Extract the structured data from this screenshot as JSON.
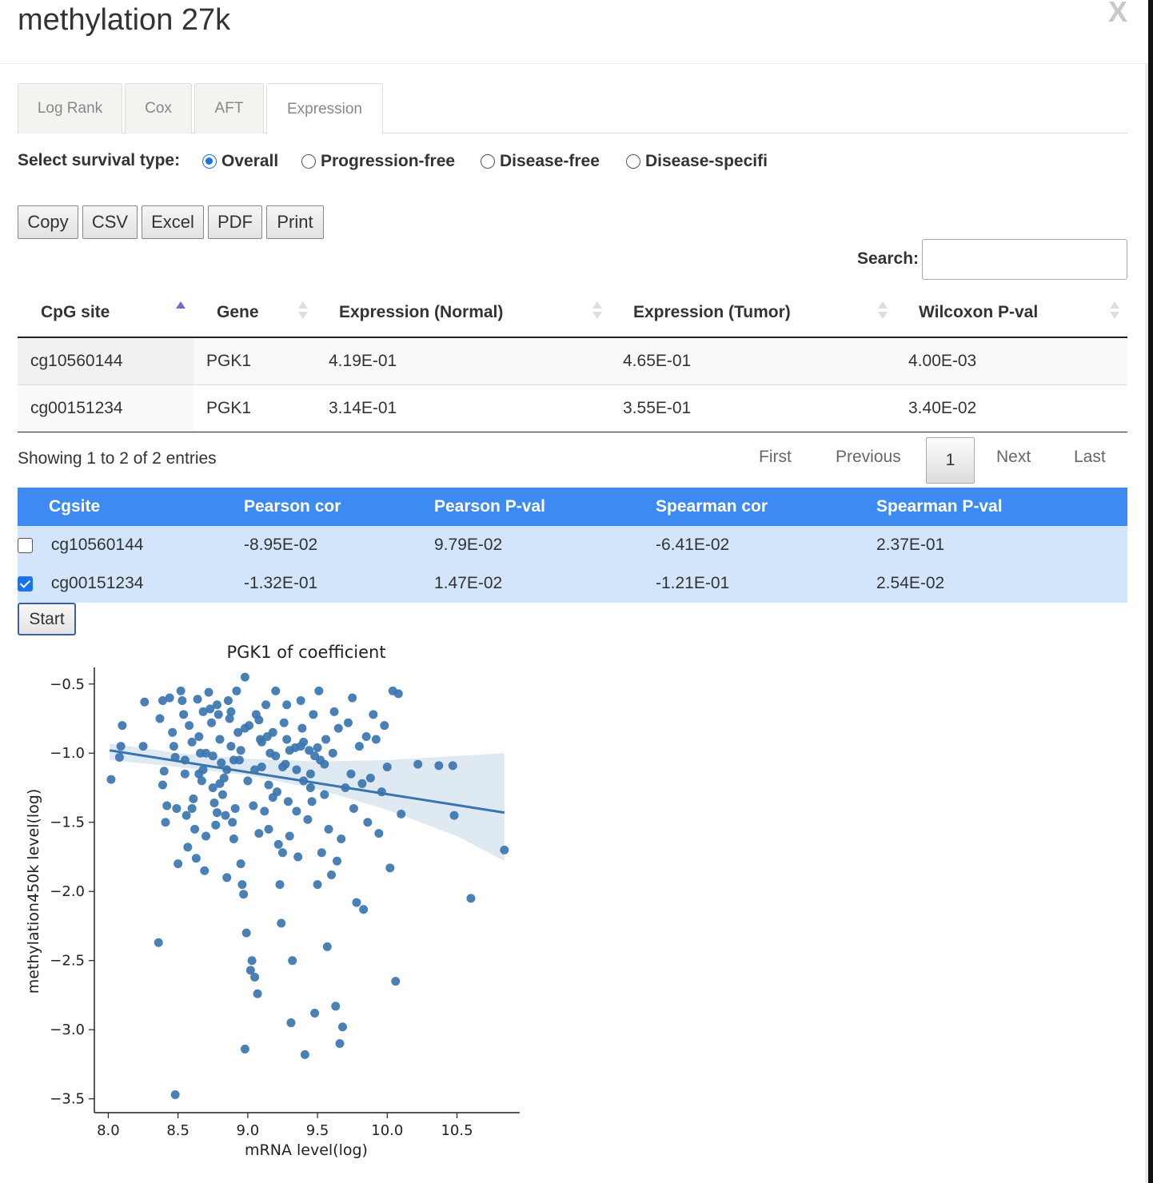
{
  "modal": {
    "title": "methylation 27k",
    "close_label": "X"
  },
  "tabs": [
    {
      "label": "Log Rank",
      "active": false
    },
    {
      "label": "Cox",
      "active": false
    },
    {
      "label": "AFT",
      "active": false
    },
    {
      "label": "Expression",
      "active": true
    }
  ],
  "survival": {
    "label": "Select survival type:",
    "options": [
      {
        "label": "Overall",
        "selected": true
      },
      {
        "label": "Progression-free",
        "selected": false
      },
      {
        "label": "Disease-free",
        "selected": false
      },
      {
        "label": "Disease-specifi",
        "selected": false
      }
    ]
  },
  "export_buttons": [
    "Copy",
    "CSV",
    "Excel",
    "PDF",
    "Print"
  ],
  "search": {
    "label": "Search:",
    "value": ""
  },
  "expression_table": {
    "columns": [
      "CpG site",
      "Gene",
      "Expression (Normal)",
      "Expression (Tumor)",
      "Wilcoxon P-val"
    ],
    "rows": [
      [
        "cg10560144",
        "PGK1",
        "4.19E-01",
        "4.65E-01",
        "4.00E-03"
      ],
      [
        "cg00151234",
        "PGK1",
        "3.14E-01",
        "3.55E-01",
        "3.40E-02"
      ]
    ]
  },
  "table_info": "Showing 1 to 2 of 2 entries",
  "pagination": {
    "first": "First",
    "previous": "Previous",
    "current": "1",
    "next": "Next",
    "last": "Last"
  },
  "correlation_table": {
    "columns": [
      "Cgsite",
      "Pearson cor",
      "Pearson P-val",
      "Spearman cor",
      "Spearman P-val"
    ],
    "rows": [
      {
        "checked": false,
        "cells": [
          "cg10560144",
          "-8.95E-02",
          "9.79E-02",
          "-6.41E-02",
          "2.37E-01"
        ]
      },
      {
        "checked": true,
        "cells": [
          "cg00151234",
          "-1.32E-01",
          "1.47E-02",
          "-1.21E-01",
          "2.54E-02"
        ]
      }
    ]
  },
  "start_button": "Start",
  "chart_data": {
    "type": "scatter",
    "title": "PGK1 of coefficient",
    "xlabel": "mRNA level(log)",
    "ylabel": "methylation450k level(log)",
    "xlim": [
      7.9,
      10.95
    ],
    "ylim": [
      -3.6,
      -0.38
    ],
    "x_ticks": [
      8.0,
      8.5,
      9.0,
      9.5,
      10.0,
      10.5
    ],
    "x_tick_labels": [
      "8.0",
      "8.5",
      "9.0",
      "9.5",
      "10.0",
      "10.5"
    ],
    "y_ticks": [
      -0.5,
      -1.0,
      -1.5,
      -2.0,
      -2.5,
      -3.0,
      -3.5
    ],
    "y_tick_labels": [
      "−0.5",
      "−1.0",
      "−1.5",
      "−2.0",
      "−2.5",
      "−3.0",
      "−3.5"
    ],
    "grid": false,
    "point_color": "#3a75b0",
    "regression": {
      "x": [
        8.01,
        10.84
      ],
      "y": [
        -0.98,
        -1.43
      ]
    },
    "confidence_band": {
      "x": [
        8.01,
        8.5,
        9.0,
        9.5,
        10.0,
        10.5,
        10.84
      ],
      "upper": [
        -0.93,
        -1.0,
        -1.04,
        -1.06,
        -1.05,
        -1.02,
        -1.0
      ],
      "lower": [
        -1.05,
        -1.1,
        -1.16,
        -1.26,
        -1.41,
        -1.6,
        -1.78
      ]
    },
    "points": [
      [
        8.02,
        -1.19
      ],
      [
        8.08,
        -1.03
      ],
      [
        8.09,
        -0.95
      ],
      [
        8.1,
        -0.8
      ],
      [
        8.25,
        -0.95
      ],
      [
        8.26,
        -0.63
      ],
      [
        8.37,
        -0.75
      ],
      [
        8.39,
        -0.62
      ],
      [
        8.4,
        -1.13
      ],
      [
        8.39,
        -1.23
      ],
      [
        8.41,
        -1.5
      ],
      [
        8.42,
        -1.38
      ],
      [
        8.44,
        -0.6
      ],
      [
        8.46,
        -0.85
      ],
      [
        8.47,
        -0.95
      ],
      [
        8.48,
        -1.03
      ],
      [
        8.49,
        -1.4
      ],
      [
        8.5,
        -1.8
      ],
      [
        8.52,
        -0.55
      ],
      [
        8.53,
        -0.62
      ],
      [
        8.54,
        -0.72
      ],
      [
        8.55,
        -1.15
      ],
      [
        8.56,
        -1.45
      ],
      [
        8.57,
        -1.68
      ],
      [
        8.6,
        -1.4
      ],
      [
        8.61,
        -1.33
      ],
      [
        8.62,
        -1.55
      ],
      [
        8.63,
        -1.76
      ],
      [
        8.64,
        -0.61
      ],
      [
        8.65,
        -0.88
      ],
      [
        8.66,
        -1.0
      ],
      [
        8.67,
        -1.2
      ],
      [
        8.68,
        -1.12
      ],
      [
        8.69,
        -1.85
      ],
      [
        8.7,
        -1.6
      ],
      [
        8.72,
        -0.56
      ],
      [
        8.73,
        -0.68
      ],
      [
        8.74,
        -0.78
      ],
      [
        8.75,
        -1.25
      ],
      [
        8.76,
        -1.36
      ],
      [
        8.77,
        -1.52
      ],
      [
        8.78,
        -1.43
      ],
      [
        8.79,
        -0.72
      ],
      [
        8.8,
        -0.9
      ],
      [
        8.81,
        -1.07
      ],
      [
        8.82,
        -1.3
      ],
      [
        8.83,
        -1.18
      ],
      [
        8.84,
        -1.45
      ],
      [
        8.85,
        -1.9
      ],
      [
        8.86,
        -0.62
      ],
      [
        8.87,
        -0.75
      ],
      [
        8.88,
        -0.95
      ],
      [
        8.89,
        -1.5
      ],
      [
        8.9,
        -1.62
      ],
      [
        8.91,
        -1.4
      ],
      [
        8.92,
        -0.55
      ],
      [
        8.93,
        -0.85
      ],
      [
        8.94,
        -1.05
      ],
      [
        8.95,
        -1.8
      ],
      [
        8.96,
        -1.95
      ],
      [
        8.97,
        -2.02
      ],
      [
        8.98,
        -0.45
      ],
      [
        8.99,
        -2.3
      ],
      [
        9.0,
        -1.2
      ],
      [
        9.01,
        -0.8
      ],
      [
        9.02,
        -2.57
      ],
      [
        9.03,
        -2.5
      ],
      [
        9.04,
        -1.38
      ],
      [
        9.05,
        -2.62
      ],
      [
        9.06,
        -0.72
      ],
      [
        9.07,
        -2.74
      ],
      [
        9.08,
        -1.58
      ],
      [
        9.09,
        -0.9
      ],
      [
        9.1,
        -1.1
      ],
      [
        9.12,
        -1.42
      ],
      [
        9.13,
        -0.65
      ],
      [
        9.14,
        -0.88
      ],
      [
        9.15,
        -1.55
      ],
      [
        9.16,
        -1.0
      ],
      [
        9.18,
        -1.32
      ],
      [
        9.2,
        -0.55
      ],
      [
        9.21,
        -1.28
      ],
      [
        9.22,
        -1.66
      ],
      [
        9.23,
        -1.95
      ],
      [
        9.24,
        -2.23
      ],
      [
        9.25,
        -1.72
      ],
      [
        9.26,
        -0.78
      ],
      [
        9.27,
        -1.08
      ],
      [
        9.28,
        -0.65
      ],
      [
        9.29,
        -1.35
      ],
      [
        9.3,
        -1.6
      ],
      [
        9.32,
        -2.5
      ],
      [
        9.34,
        -0.96
      ],
      [
        9.35,
        -1.42
      ],
      [
        9.36,
        -1.75
      ],
      [
        9.38,
        -0.62
      ],
      [
        9.39,
        -0.82
      ],
      [
        9.4,
        -1.2
      ],
      [
        9.41,
        -3.18
      ],
      [
        9.43,
        -1.48
      ],
      [
        9.44,
        -0.98
      ],
      [
        9.45,
        -1.15
      ],
      [
        9.46,
        -1.35
      ],
      [
        9.47,
        -0.72
      ],
      [
        9.48,
        -2.88
      ],
      [
        9.5,
        -1.95
      ],
      [
        9.51,
        -0.55
      ],
      [
        9.52,
        -1.05
      ],
      [
        9.53,
        -1.72
      ],
      [
        9.55,
        -1.3
      ],
      [
        9.56,
        -0.9
      ],
      [
        9.57,
        -2.4
      ],
      [
        9.58,
        -1.55
      ],
      [
        9.6,
        -1.88
      ],
      [
        9.61,
        -1.0
      ],
      [
        9.62,
        -0.7
      ],
      [
        9.63,
        -2.83
      ],
      [
        9.64,
        -1.78
      ],
      [
        9.65,
        -0.82
      ],
      [
        9.66,
        -3.1
      ],
      [
        9.67,
        -1.62
      ],
      [
        9.68,
        -2.98
      ],
      [
        9.7,
        -1.25
      ],
      [
        9.72,
        -0.78
      ],
      [
        9.74,
        -1.15
      ],
      [
        9.75,
        -0.6
      ],
      [
        9.76,
        -1.4
      ],
      [
        9.78,
        -2.08
      ],
      [
        9.8,
        -0.95
      ],
      [
        9.82,
        -1.22
      ],
      [
        9.83,
        -2.13
      ],
      [
        9.85,
        -0.88
      ],
      [
        9.86,
        -1.5
      ],
      [
        9.88,
        -1.18
      ],
      [
        9.9,
        -0.72
      ],
      [
        9.92,
        -0.9
      ],
      [
        9.94,
        -1.58
      ],
      [
        9.96,
        -1.28
      ],
      [
        9.98,
        -0.8
      ],
      [
        10.0,
        -1.1
      ],
      [
        10.02,
        -1.83
      ],
      [
        10.04,
        -0.55
      ],
      [
        10.06,
        -2.65
      ],
      [
        10.08,
        -0.57
      ],
      [
        10.1,
        -1.44
      ],
      [
        10.22,
        -1.08
      ],
      [
        10.37,
        -1.09
      ],
      [
        10.47,
        -1.09
      ],
      [
        10.48,
        -1.45
      ],
      [
        10.6,
        -2.05
      ],
      [
        10.84,
        -1.7
      ],
      [
        8.36,
        -2.37
      ],
      [
        8.48,
        -3.47
      ],
      [
        8.98,
        -3.14
      ],
      [
        9.31,
        -2.95
      ],
      [
        8.6,
        -0.92
      ],
      [
        8.7,
        -1.0
      ],
      [
        8.8,
        -1.22
      ],
      [
        8.9,
        -1.05
      ],
      [
        9.05,
        -1.12
      ],
      [
        9.15,
        -1.23
      ],
      [
        9.25,
        -1.1
      ],
      [
        9.35,
        -1.12
      ],
      [
        9.45,
        -1.25
      ],
      [
        9.55,
        -1.08
      ],
      [
        8.55,
        -1.05
      ],
      [
        8.65,
        -1.15
      ],
      [
        8.75,
        -1.02
      ],
      [
        8.85,
        -1.12
      ],
      [
        8.95,
        -0.98
      ],
      [
        9.1,
        -0.92
      ],
      [
        9.2,
        -1.02
      ],
      [
        9.3,
        -0.98
      ],
      [
        9.4,
        -0.92
      ],
      [
        9.5,
        -0.96
      ],
      [
        8.58,
        -0.8
      ],
      [
        8.68,
        -0.7
      ],
      [
        8.78,
        -0.65
      ],
      [
        8.88,
        -0.7
      ],
      [
        8.98,
        -0.82
      ],
      [
        9.08,
        -0.76
      ],
      [
        9.18,
        -0.85
      ],
      [
        9.28,
        -0.9
      ],
      [
        9.38,
        -0.95
      ],
      [
        9.48,
        -1.02
      ]
    ]
  }
}
